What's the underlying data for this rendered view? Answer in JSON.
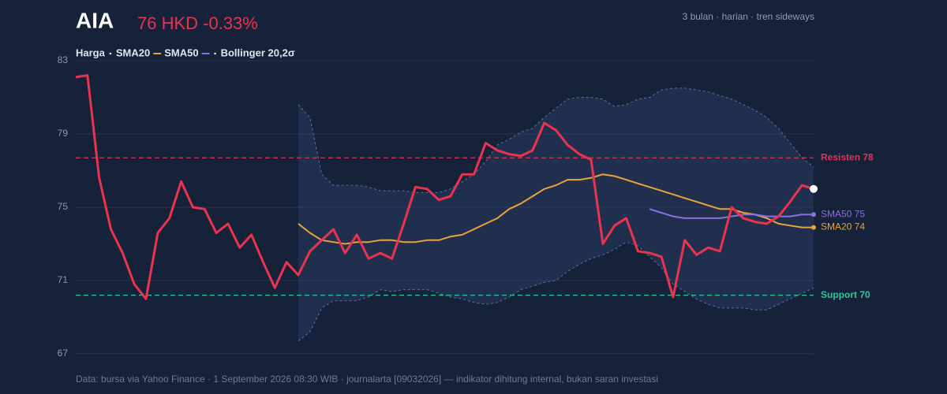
{
  "chart_data": {
    "type": "line",
    "title": "AIA",
    "price_text": "76 HKD -0.33%",
    "subtitle": "3 bulan · harian · tren sideways",
    "footer": "Data: bursa via Yahoo Finance · 1 September 2026 08:30 WIB · journalarta [09032026] — indikator dihitung internal, bukan saran investasi",
    "ylim": [
      67,
      83
    ],
    "yticks": [
      67,
      71,
      75,
      79,
      83
    ],
    "grid": true,
    "series": [
      {
        "name": "Harga",
        "color": "#e8344e",
        "values": [
          82.1,
          82.2,
          76.6,
          73.8,
          72.5,
          70.8,
          70.0,
          73.6,
          74.4,
          76.4,
          75.0,
          74.9,
          73.6,
          74.1,
          72.8,
          73.5,
          72.0,
          70.6,
          72.0,
          71.3,
          72.6,
          73.2,
          73.8,
          72.5,
          73.5,
          72.2,
          72.5,
          72.2,
          74.1,
          76.1,
          76.0,
          75.4,
          75.6,
          76.8,
          76.8,
          78.5,
          78.1,
          77.9,
          77.8,
          78.1,
          79.6,
          79.2,
          78.4,
          77.9,
          77.6,
          73.0,
          74.0,
          74.4,
          72.6,
          72.5,
          72.3,
          70.1,
          73.2,
          72.4,
          72.8,
          72.6,
          75.0,
          74.4,
          74.2,
          74.1,
          74.5,
          75.3,
          76.2,
          76.0
        ]
      },
      {
        "name": "SMA20",
        "color": "#e8a33d",
        "end_label": "SMA20 74",
        "values": [
          null,
          null,
          null,
          null,
          null,
          null,
          null,
          null,
          null,
          null,
          null,
          null,
          null,
          null,
          null,
          null,
          null,
          null,
          null,
          74.1,
          73.6,
          73.2,
          73.1,
          73.0,
          73.1,
          73.1,
          73.2,
          73.2,
          73.1,
          73.1,
          73.2,
          73.2,
          73.4,
          73.5,
          73.8,
          74.1,
          74.4,
          74.9,
          75.2,
          75.6,
          76.0,
          76.2,
          76.5,
          76.5,
          76.6,
          76.8,
          76.7,
          76.5,
          76.3,
          76.1,
          75.9,
          75.7,
          75.5,
          75.3,
          75.1,
          74.9,
          74.9,
          74.7,
          74.6,
          74.4,
          74.1,
          74.0,
          73.9,
          73.9
        ]
      },
      {
        "name": "SMA50",
        "color": "#8b6fe0",
        "end_label": "SMA50 75",
        "values": [
          null,
          null,
          null,
          null,
          null,
          null,
          null,
          null,
          null,
          null,
          null,
          null,
          null,
          null,
          null,
          null,
          null,
          null,
          null,
          null,
          null,
          null,
          null,
          null,
          null,
          null,
          null,
          null,
          null,
          null,
          null,
          null,
          null,
          null,
          null,
          null,
          null,
          null,
          null,
          null,
          null,
          null,
          null,
          null,
          null,
          null,
          null,
          null,
          null,
          74.9,
          74.7,
          74.5,
          74.4,
          74.4,
          74.4,
          74.4,
          74.5,
          74.6,
          74.6,
          74.5,
          74.5,
          74.5,
          74.6,
          74.6
        ]
      },
      {
        "name": "Bollinger 20,2σ",
        "color": "#5d7299",
        "upper": [
          null,
          null,
          null,
          null,
          null,
          null,
          null,
          null,
          null,
          null,
          null,
          null,
          null,
          null,
          null,
          null,
          null,
          null,
          null,
          80.6,
          79.9,
          76.8,
          76.2,
          76.2,
          76.2,
          76.1,
          75.9,
          75.9,
          75.9,
          75.8,
          75.8,
          75.8,
          76.0,
          76.4,
          76.8,
          77.5,
          78.4,
          78.7,
          79.1,
          79.3,
          79.9,
          80.4,
          80.9,
          81.0,
          81.0,
          80.9,
          80.5,
          80.6,
          80.9,
          81.0,
          81.4,
          81.5,
          81.5,
          81.4,
          81.3,
          81.1,
          80.9,
          80.6,
          80.3,
          79.9,
          79.3,
          78.5,
          77.7,
          77.2
        ],
        "lower": [
          null,
          null,
          null,
          null,
          null,
          null,
          null,
          null,
          null,
          null,
          null,
          null,
          null,
          null,
          null,
          null,
          null,
          null,
          null,
          67.7,
          68.2,
          69.5,
          69.9,
          69.9,
          69.9,
          70.1,
          70.5,
          70.4,
          70.5,
          70.5,
          70.5,
          70.3,
          70.1,
          70.0,
          69.8,
          69.7,
          69.8,
          70.1,
          70.5,
          70.7,
          70.9,
          71.0,
          71.5,
          71.9,
          72.2,
          72.4,
          72.7,
          73.1,
          72.9,
          72.3,
          71.7,
          70.8,
          70.4,
          70.0,
          69.7,
          69.5,
          69.5,
          69.5,
          69.4,
          69.4,
          69.7,
          70.0,
          70.3,
          70.6
        ]
      }
    ],
    "levels": [
      {
        "name": "Resisten 78",
        "value": 77.7,
        "color": "#e0335a"
      },
      {
        "name": "Support 70",
        "value": 70.2,
        "color": "#2ec99a"
      }
    ]
  }
}
